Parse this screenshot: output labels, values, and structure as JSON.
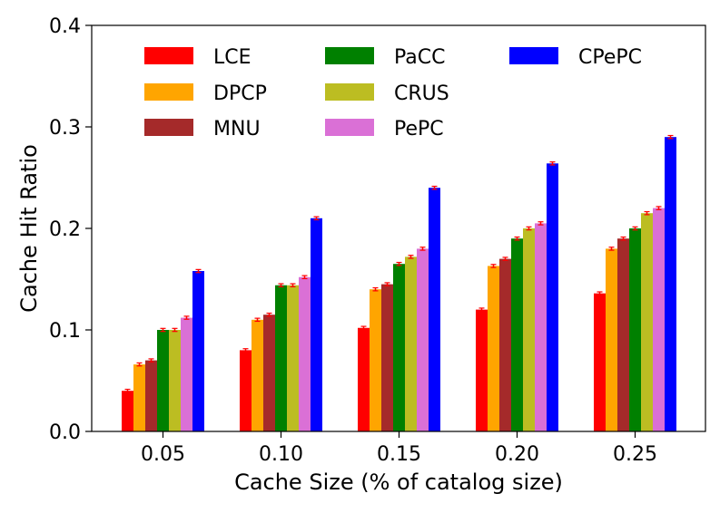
{
  "chart_data": {
    "type": "bar",
    "title": "",
    "xlabel": "Cache Size (% of catalog size)",
    "ylabel": "Cache Hit Ratio",
    "ylim": [
      0,
      0.4
    ],
    "yticks": [
      "0.0",
      "0.1",
      "0.2",
      "0.3",
      "0.4"
    ],
    "categories": [
      "0.05",
      "0.10",
      "0.15",
      "0.20",
      "0.25"
    ],
    "legend_position": "top",
    "series": [
      {
        "name": "LCE",
        "color": "#ff0000",
        "values": [
          0.04,
          0.08,
          0.102,
          0.12,
          0.136
        ]
      },
      {
        "name": "DPCP",
        "color": "#ffa500",
        "values": [
          0.066,
          0.11,
          0.14,
          0.163,
          0.18
        ]
      },
      {
        "name": "MNU",
        "color": "#a52a2a",
        "values": [
          0.07,
          0.115,
          0.145,
          0.17,
          0.19
        ]
      },
      {
        "name": "PaCC",
        "color": "#008000",
        "values": [
          0.1,
          0.144,
          0.165,
          0.19,
          0.2
        ]
      },
      {
        "name": "CRUS",
        "color": "#bcbd22",
        "values": [
          0.1,
          0.144,
          0.172,
          0.2,
          0.215
        ]
      },
      {
        "name": "PePC",
        "color": "#da70d6",
        "values": [
          0.112,
          0.152,
          0.18,
          0.205,
          0.22
        ]
      },
      {
        "name": "CPePC",
        "color": "#0000ff",
        "values": [
          0.158,
          0.21,
          0.24,
          0.264,
          0.29
        ]
      }
    ],
    "error_bar_color": "#ff0000"
  }
}
